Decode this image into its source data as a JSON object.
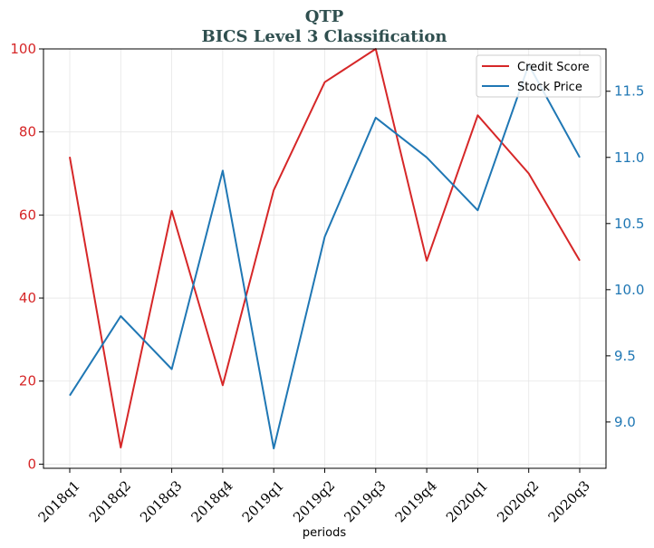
{
  "chart_data": {
    "type": "line",
    "title": "QTP",
    "subtitle": "BICS Level 3 Classification",
    "xlabel": "periods",
    "ylabel_left": "",
    "ylabel_right": "",
    "categories": [
      "2018q1",
      "2018q2",
      "2018q3",
      "2018q4",
      "2019q1",
      "2019q2",
      "2019q3",
      "2019q4",
      "2020q1",
      "2020q2",
      "2020q3"
    ],
    "series": [
      {
        "name": "Credit Score",
        "axis": "left",
        "color": "#d62728",
        "values": [
          74,
          4,
          61,
          19,
          66,
          92,
          100,
          49,
          84,
          70,
          49
        ]
      },
      {
        "name": "Stock Price",
        "axis": "right",
        "color": "#1f77b4",
        "values": [
          9.2,
          9.8,
          9.4,
          10.9,
          8.8,
          10.4,
          11.3,
          11.0,
          10.6,
          11.7,
          11.0
        ]
      }
    ],
    "ylim_left": [
      -1,
      100
    ],
    "ylim_right": [
      8.65,
      11.82
    ],
    "yticks_left": [
      0,
      20,
      40,
      60,
      80,
      100
    ],
    "yticks_right": [
      9.0,
      9.5,
      10.0,
      10.5,
      11.0,
      11.5
    ],
    "ytick_labels_right": [
      "9.0",
      "9.5",
      "10.0",
      "10.5",
      "11.0",
      "11.5"
    ],
    "grid": true,
    "legend_position": "top-right"
  }
}
